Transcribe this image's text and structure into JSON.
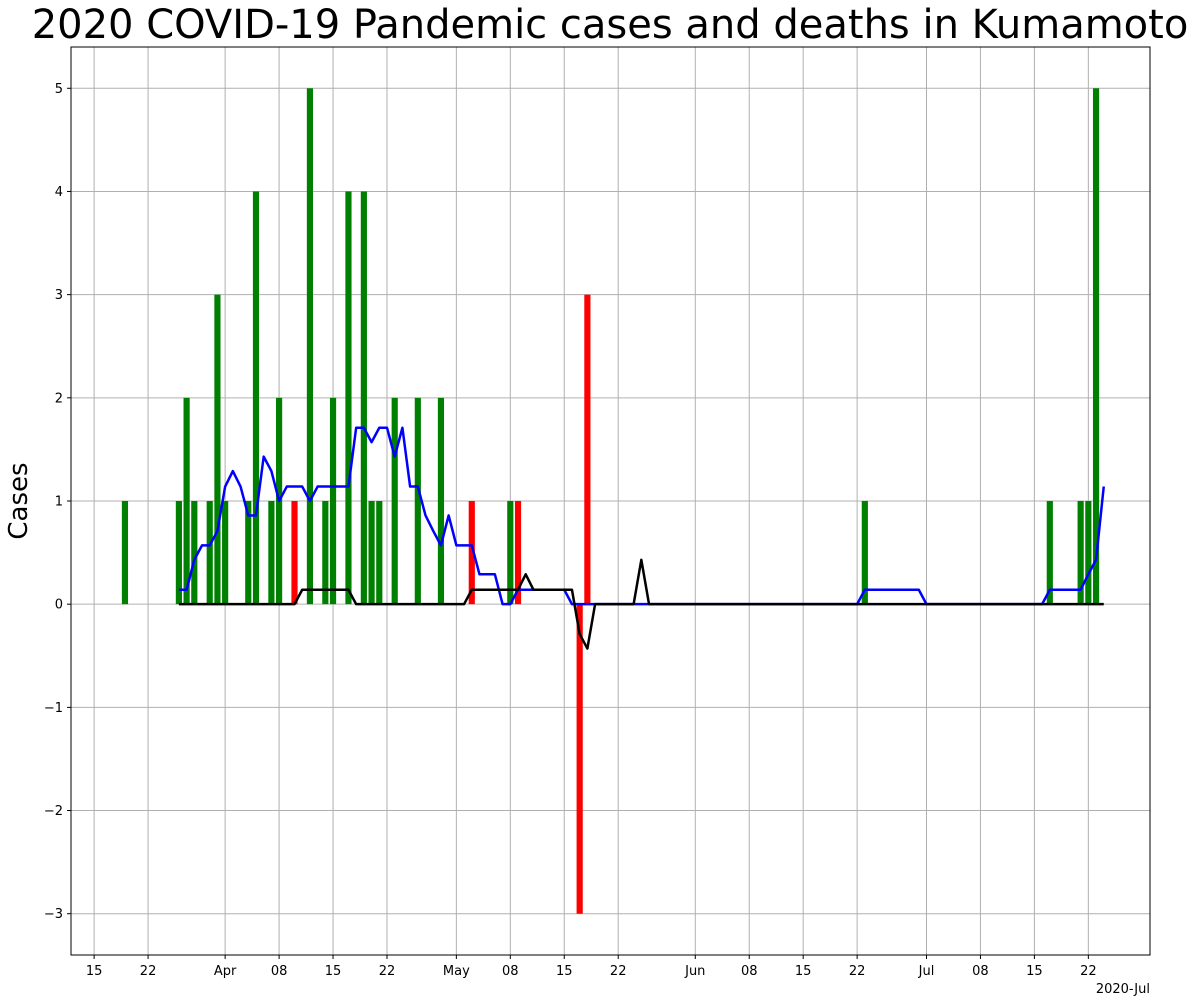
{
  "chart_data": {
    "type": "bar",
    "title": "2020 COVID-19 Pandemic cases and deaths in Kumamoto",
    "ylabel": "Cases",
    "xlabel": "",
    "offset_label": "2020-Jul",
    "x_range": [
      "2020-03-12",
      "2020-07-30"
    ],
    "ylim": [
      -3.4,
      5.4
    ],
    "grid": true,
    "colors": {
      "cases": "#008000",
      "deaths": "#ff0000",
      "cases_avg": "#0000ff",
      "deaths_avg": "#000000"
    },
    "x_ticks": [
      {
        "date": "2020-03-15",
        "label": "15"
      },
      {
        "date": "2020-03-22",
        "label": "22"
      },
      {
        "date": "2020-04-01",
        "label": "Apr"
      },
      {
        "date": "2020-04-08",
        "label": "08"
      },
      {
        "date": "2020-04-15",
        "label": "15"
      },
      {
        "date": "2020-04-22",
        "label": "22"
      },
      {
        "date": "2020-05-01",
        "label": "May"
      },
      {
        "date": "2020-05-08",
        "label": "08"
      },
      {
        "date": "2020-05-15",
        "label": "15"
      },
      {
        "date": "2020-05-22",
        "label": "22"
      },
      {
        "date": "2020-06-01",
        "label": "Jun"
      },
      {
        "date": "2020-06-08",
        "label": "08"
      },
      {
        "date": "2020-06-15",
        "label": "15"
      },
      {
        "date": "2020-06-22",
        "label": "22"
      },
      {
        "date": "2020-07-01",
        "label": "Jul"
      },
      {
        "date": "2020-07-08",
        "label": "08"
      },
      {
        "date": "2020-07-15",
        "label": "15"
      },
      {
        "date": "2020-07-22",
        "label": "22"
      }
    ],
    "y_ticks": [
      {
        "value": -3,
        "label": "−3"
      },
      {
        "value": -2,
        "label": "−2"
      },
      {
        "value": -1,
        "label": "−1"
      },
      {
        "value": 0,
        "label": "0"
      },
      {
        "value": 1,
        "label": "1"
      },
      {
        "value": 2,
        "label": "2"
      },
      {
        "value": 3,
        "label": "3"
      },
      {
        "value": 4,
        "label": "4"
      },
      {
        "value": 5,
        "label": "5"
      }
    ],
    "series": [
      {
        "kind": "bar",
        "color": "#008000",
        "points": [
          [
            "2020-03-19",
            1
          ],
          [
            "2020-03-26",
            1
          ],
          [
            "2020-03-27",
            2
          ],
          [
            "2020-03-28",
            1
          ],
          [
            "2020-03-30",
            1
          ],
          [
            "2020-03-31",
            3
          ],
          [
            "2020-04-01",
            1
          ],
          [
            "2020-04-04",
            1
          ],
          [
            "2020-04-05",
            4
          ],
          [
            "2020-04-07",
            1
          ],
          [
            "2020-04-08",
            2
          ],
          [
            "2020-04-12",
            5
          ],
          [
            "2020-04-14",
            1
          ],
          [
            "2020-04-15",
            2
          ],
          [
            "2020-04-17",
            4
          ],
          [
            "2020-04-19",
            4
          ],
          [
            "2020-04-20",
            1
          ],
          [
            "2020-04-21",
            1
          ],
          [
            "2020-04-23",
            2
          ],
          [
            "2020-04-26",
            2
          ],
          [
            "2020-04-29",
            2
          ],
          [
            "2020-05-08",
            1
          ],
          [
            "2020-06-23",
            1
          ],
          [
            "2020-07-17",
            1
          ],
          [
            "2020-07-21",
            1
          ],
          [
            "2020-07-22",
            1
          ],
          [
            "2020-07-23",
            5
          ]
        ]
      },
      {
        "kind": "bar",
        "color": "#ff0000",
        "points": [
          [
            "2020-04-10",
            1
          ],
          [
            "2020-05-03",
            1
          ],
          [
            "2020-05-09",
            1
          ],
          [
            "2020-05-17",
            -3
          ],
          [
            "2020-05-18",
            3
          ]
        ]
      },
      {
        "kind": "line",
        "color": "#0000ff",
        "points": [
          [
            "2020-03-26",
            0.14
          ],
          [
            "2020-03-27",
            0.14
          ],
          [
            "2020-03-28",
            0.43
          ],
          [
            "2020-03-29",
            0.57
          ],
          [
            "2020-03-30",
            0.57
          ],
          [
            "2020-03-31",
            0.71
          ],
          [
            "2020-04-01",
            1.14
          ],
          [
            "2020-04-02",
            1.29
          ],
          [
            "2020-04-03",
            1.14
          ],
          [
            "2020-04-04",
            0.86
          ],
          [
            "2020-04-05",
            0.86
          ],
          [
            "2020-04-06",
            1.43
          ],
          [
            "2020-04-07",
            1.29
          ],
          [
            "2020-04-08",
            1.0
          ],
          [
            "2020-04-09",
            1.14
          ],
          [
            "2020-04-10",
            1.14
          ],
          [
            "2020-04-11",
            1.14
          ],
          [
            "2020-04-12",
            1.0
          ],
          [
            "2020-04-13",
            1.14
          ],
          [
            "2020-04-14",
            1.14
          ],
          [
            "2020-04-15",
            1.14
          ],
          [
            "2020-04-16",
            1.14
          ],
          [
            "2020-04-17",
            1.14
          ],
          [
            "2020-04-18",
            1.71
          ],
          [
            "2020-04-19",
            1.71
          ],
          [
            "2020-04-20",
            1.57
          ],
          [
            "2020-04-21",
            1.71
          ],
          [
            "2020-04-22",
            1.71
          ],
          [
            "2020-04-23",
            1.43
          ],
          [
            "2020-04-24",
            1.71
          ],
          [
            "2020-04-25",
            1.14
          ],
          [
            "2020-04-26",
            1.14
          ],
          [
            "2020-04-27",
            0.86
          ],
          [
            "2020-04-28",
            0.71
          ],
          [
            "2020-04-29",
            0.57
          ],
          [
            "2020-04-30",
            0.86
          ],
          [
            "2020-05-01",
            0.57
          ],
          [
            "2020-05-02",
            0.57
          ],
          [
            "2020-05-03",
            0.57
          ],
          [
            "2020-05-04",
            0.29
          ],
          [
            "2020-05-05",
            0.29
          ],
          [
            "2020-05-06",
            0.29
          ],
          [
            "2020-05-07",
            0.0
          ],
          [
            "2020-05-08",
            0.0
          ],
          [
            "2020-05-09",
            0.14
          ],
          [
            "2020-05-15",
            0.14
          ],
          [
            "2020-05-16",
            0.0
          ],
          [
            "2020-05-22",
            0.0
          ],
          [
            "2020-06-22",
            0.0
          ],
          [
            "2020-06-23",
            0.14
          ],
          [
            "2020-06-30",
            0.14
          ],
          [
            "2020-07-01",
            0.0
          ],
          [
            "2020-07-16",
            0.0
          ],
          [
            "2020-07-17",
            0.14
          ],
          [
            "2020-07-20",
            0.14
          ],
          [
            "2020-07-21",
            0.14
          ],
          [
            "2020-07-22",
            0.29
          ],
          [
            "2020-07-23",
            0.43
          ],
          [
            "2020-07-24",
            1.14
          ]
        ]
      },
      {
        "kind": "line",
        "color": "#000000",
        "points": [
          [
            "2020-03-26",
            0.0
          ],
          [
            "2020-04-10",
            0.0
          ],
          [
            "2020-04-11",
            0.14
          ],
          [
            "2020-04-17",
            0.14
          ],
          [
            "2020-04-18",
            0.0
          ],
          [
            "2020-05-02",
            0.0
          ],
          [
            "2020-05-03",
            0.14
          ],
          [
            "2020-05-09",
            0.14
          ],
          [
            "2020-05-10",
            0.29
          ],
          [
            "2020-05-11",
            0.14
          ],
          [
            "2020-05-16",
            0.14
          ],
          [
            "2020-05-17",
            -0.29
          ],
          [
            "2020-05-18",
            -0.43
          ],
          [
            "2020-05-19",
            0.0
          ],
          [
            "2020-05-24",
            0.0
          ],
          [
            "2020-05-25",
            0.43
          ],
          [
            "2020-05-26",
            0.0
          ],
          [
            "2020-07-24",
            0.0
          ]
        ]
      }
    ]
  }
}
